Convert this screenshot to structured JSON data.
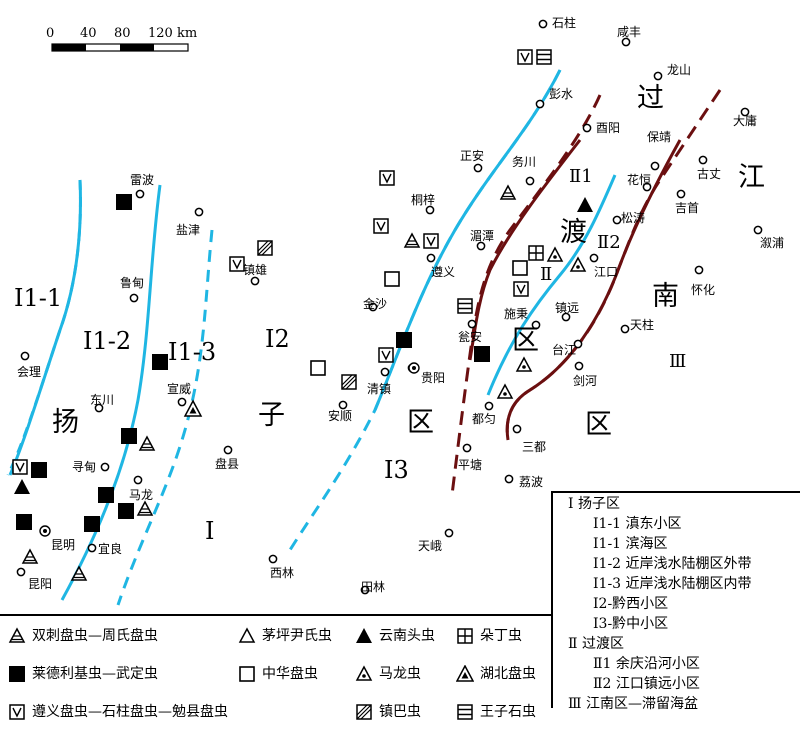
{
  "scale": {
    "ticks": [
      "0",
      "40",
      "80",
      "120 km"
    ]
  },
  "places": [
    {
      "id": "shizhu",
      "name": "石柱"
    },
    {
      "id": "xianfeng",
      "name": "咸丰"
    },
    {
      "id": "longshan",
      "name": "龙山"
    },
    {
      "id": "pengshui",
      "name": "彭水"
    },
    {
      "id": "dayong",
      "name": "大庸"
    },
    {
      "id": "youyang",
      "name": "酉阳"
    },
    {
      "id": "baojing",
      "name": "保靖"
    },
    {
      "id": "zhengan",
      "name": "正安"
    },
    {
      "id": "wuchuan",
      "name": "务川"
    },
    {
      "id": "huayuan",
      "name": "花恒"
    },
    {
      "id": "guzhang",
      "name": "古丈"
    },
    {
      "id": "jishou",
      "name": "吉首"
    },
    {
      "id": "leibo",
      "name": "雷波"
    },
    {
      "id": "tongzi",
      "name": "桐梓"
    },
    {
      "id": "songtao",
      "name": "松涛"
    },
    {
      "id": "yanjin",
      "name": "盐津"
    },
    {
      "id": "meitan",
      "name": "湄潭"
    },
    {
      "id": "xupu",
      "name": "溆浦"
    },
    {
      "id": "zhenxiong",
      "name": "镇雄"
    },
    {
      "id": "zunyi",
      "name": "遵义"
    },
    {
      "id": "jiangkou",
      "name": "江口"
    },
    {
      "id": "huaihua",
      "name": "怀化"
    },
    {
      "id": "ludian",
      "name": "鲁甸"
    },
    {
      "id": "jinsha",
      "name": "金沙"
    },
    {
      "id": "zhenyuan",
      "name": "镇远"
    },
    {
      "id": "shibing",
      "name": "施秉"
    },
    {
      "id": "wengan",
      "name": "瓮安"
    },
    {
      "id": "tianzhu",
      "name": "天柱"
    },
    {
      "id": "huili",
      "name": "会理"
    },
    {
      "id": "taijiang",
      "name": "台江"
    },
    {
      "id": "qingzhen",
      "name": "清镇"
    },
    {
      "id": "guiyang",
      "name": "贵阳"
    },
    {
      "id": "jianhe",
      "name": "剑河"
    },
    {
      "id": "xuanwei",
      "name": "宣威"
    },
    {
      "id": "dongchuan",
      "name": "东川"
    },
    {
      "id": "anshun",
      "name": "安顺"
    },
    {
      "id": "duyun",
      "name": "都匀"
    },
    {
      "id": "sandu",
      "name": "三都"
    },
    {
      "id": "panxian",
      "name": "盘县"
    },
    {
      "id": "xundian",
      "name": "寻甸"
    },
    {
      "id": "pingtang",
      "name": "平塘"
    },
    {
      "id": "libo",
      "name": "荔波"
    },
    {
      "id": "malong",
      "name": "马龙"
    },
    {
      "id": "kunming",
      "name": "昆明"
    },
    {
      "id": "yiliang",
      "name": "宜良"
    },
    {
      "id": "tiane",
      "name": "天峨"
    },
    {
      "id": "xilin",
      "name": "西林"
    },
    {
      "id": "kunyang",
      "name": "昆阳"
    },
    {
      "id": "tianlin",
      "name": "田林"
    }
  ],
  "region_labels": {
    "yang": "扬",
    "zi": "子",
    "qu1": "区",
    "guo": "过",
    "du": "渡",
    "qu2": "区",
    "jiang": "江",
    "nan": "南",
    "qu3": "区",
    "i11": "Ⅰ1-1",
    "i12": "Ⅰ1-2",
    "i13": "Ⅰ1-3",
    "i2": "Ⅰ2",
    "i3": "Ⅰ3",
    "i": "Ⅰ",
    "ii1": "Ⅱ1",
    "ii2": "Ⅱ2",
    "ii": "Ⅱ",
    "iii": "Ⅲ"
  },
  "region_legend": [
    "Ⅰ 扬子区",
    "Ⅰ1-1 滇东小区",
    "Ⅰ1-1 滨海区",
    "Ⅰ1-2 近岸浅水陆棚区外带",
    "Ⅰ1-3 近岸浅水陆棚区内带",
    "Ⅰ2-黔西小区",
    "Ⅰ3-黔中小区",
    "Ⅱ 过渡区",
    "Ⅱ1 余庆沿河小区",
    "Ⅱ2 江口镇远小区",
    "Ⅲ 江南区—滞留海盆"
  ],
  "symbol_legend": [
    {
      "symbol": "tri-bars-icon",
      "label": "双刺盘虫—周氏盘虫"
    },
    {
      "symbol": "tri-open-icon",
      "label": "茅坪尹氏虫"
    },
    {
      "symbol": "tri-solid-icon",
      "label": "云南头虫"
    },
    {
      "symbol": "square-grid-icon",
      "label": "朵丁虫"
    },
    {
      "symbol": "square-solid-icon",
      "label": "莱德利基虫—武定虫"
    },
    {
      "symbol": "square-open-icon",
      "label": "中华盘虫"
    },
    {
      "symbol": "tri-dot-icon",
      "label": "马龙虫"
    },
    {
      "symbol": "tri-solid-inner-icon",
      "label": "湖北盘虫"
    },
    {
      "symbol": "square-v-icon",
      "label": "遵义盘虫—石柱盘虫—勉县盘虫"
    },
    {
      "symbol": "square-hatch-icon",
      "label": "镇巴虫"
    },
    {
      "symbol": "square-lines-icon",
      "label": "王子石虫"
    }
  ],
  "colors": {
    "cyan_line": "#1fb6e3",
    "brown_line": "#6b0f10"
  }
}
